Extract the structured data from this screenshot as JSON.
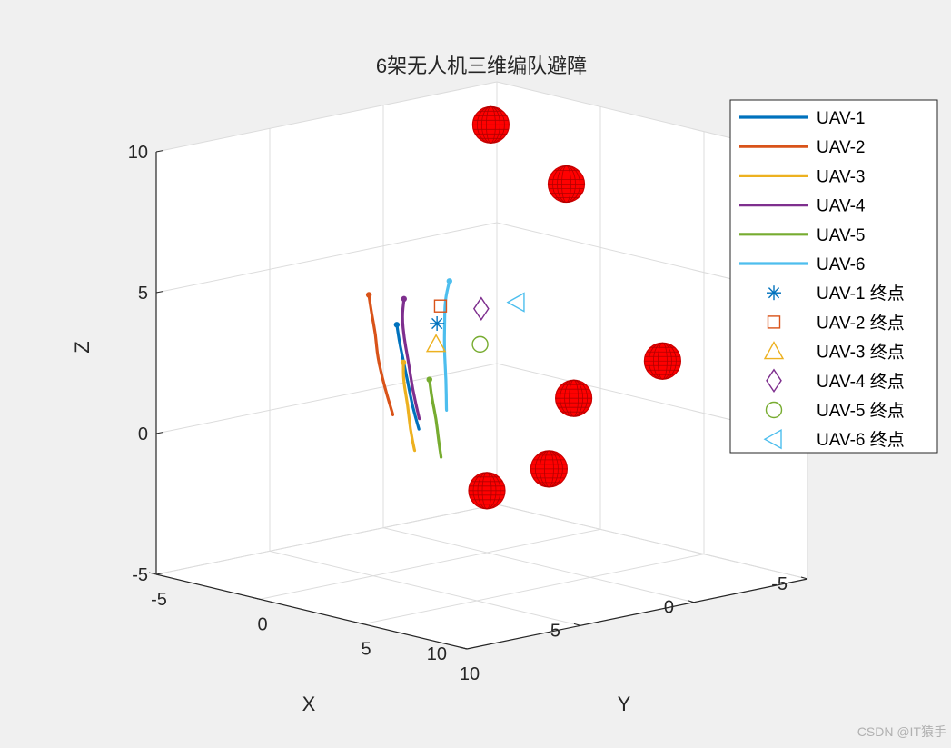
{
  "chart_data": {
    "type": "line3d",
    "title": "6架无人机三维编队避障",
    "xlabel": "X",
    "ylabel": "Y",
    "zlabel": "Z",
    "xlim": [
      -5,
      10
    ],
    "ylim": [
      -5,
      10
    ],
    "zlim": [
      -5,
      10
    ],
    "x_ticks": [
      "-5",
      "0",
      "5",
      "10"
    ],
    "y_ticks": [
      "-5",
      "0",
      "5",
      "10"
    ],
    "z_ticks": [
      "-5",
      "0",
      "5",
      "10"
    ],
    "grid": true,
    "legend_position": "top-right",
    "series": [
      {
        "name": "UAV-1",
        "color": "#0072BD",
        "points": [
          [
            0.5,
            -3.8,
            2.5
          ],
          [
            1.3,
            -2.8,
            2.2
          ],
          [
            2.3,
            -1.5,
            1.9
          ],
          [
            3.2,
            -0.3,
            1.5
          ],
          [
            4.2,
            1.0,
            1.1
          ],
          [
            5.0,
            2.2,
            0.6
          ]
        ]
      },
      {
        "name": "UAV-2",
        "color": "#D95319",
        "points": [
          [
            1.0,
            -4.6,
            3.5
          ],
          [
            1.8,
            -3.6,
            3.2
          ],
          [
            2.8,
            -2.3,
            2.8
          ],
          [
            3.9,
            -1.0,
            2.4
          ],
          [
            4.8,
            0.3,
            1.8
          ],
          [
            5.6,
            1.6,
            1.1
          ]
        ]
      },
      {
        "name": "UAV-3",
        "color": "#EDB120",
        "points": [
          [
            2.4,
            -1.4,
            1.9
          ],
          [
            3.4,
            -0.3,
            1.6
          ],
          [
            4.3,
            0.9,
            1.1
          ],
          [
            5.2,
            2.0,
            0.6
          ],
          [
            6.1,
            3.2,
            0.2
          ]
        ]
      },
      {
        "name": "UAV-4",
        "color": "#7E2F8E",
        "points": [
          [
            0.0,
            -4.0,
            3.3
          ],
          [
            1.0,
            -3.0,
            3.0
          ],
          [
            2.0,
            -1.8,
            2.6
          ],
          [
            3.0,
            -0.5,
            2.2
          ],
          [
            4.0,
            0.8,
            1.6
          ],
          [
            4.8,
            2.0,
            0.9
          ]
        ]
      },
      {
        "name": "UAV-5",
        "color": "#77AC30",
        "points": [
          [
            1.8,
            -0.8,
            1.3
          ],
          [
            2.7,
            0.3,
            1.0
          ],
          [
            3.6,
            1.5,
            0.6
          ],
          [
            4.5,
            2.6,
            0.2
          ],
          [
            5.3,
            3.6,
            -0.1
          ]
        ]
      },
      {
        "name": "UAV-6",
        "color": "#4DBEEE",
        "points": [
          [
            -2.0,
            -4.0,
            3.6
          ],
          [
            -0.8,
            -2.9,
            3.3
          ],
          [
            0.4,
            -1.6,
            2.9
          ],
          [
            1.6,
            -0.3,
            2.4
          ],
          [
            2.8,
            1.1,
            1.8
          ],
          [
            3.6,
            2.0,
            1.0
          ]
        ]
      }
    ],
    "endpoints": [
      {
        "name": "UAV-1 终点",
        "color": "#0072BD",
        "marker": "asterisk",
        "point": [
          1.1,
          -1.2,
          3.1
        ]
      },
      {
        "name": "UAV-2 终点",
        "color": "#D95319",
        "marker": "square",
        "point": [
          0.4,
          -1.8,
          3.5
        ]
      },
      {
        "name": "UAV-3 终点",
        "color": "#EDB120",
        "marker": "triangle-up",
        "point": [
          2.6,
          0.4,
          2.9
        ]
      },
      {
        "name": "UAV-4 终点",
        "color": "#7E2F8E",
        "marker": "diamond",
        "point": [
          -0.3,
          -0.6,
          3.5
        ]
      },
      {
        "name": "UAV-5 终点",
        "color": "#77AC30",
        "marker": "circle",
        "point": [
          1.3,
          1.1,
          2.8
        ]
      },
      {
        "name": "UAV-6 终点",
        "color": "#4DBEEE",
        "marker": "triangle-left",
        "point": [
          -1.5,
          -0.2,
          3.6
        ]
      }
    ],
    "obstacles": {
      "color": "#FF0000",
      "spheres": [
        [
          -2.0,
          -2.0,
          9.5
        ],
        [
          -3.5,
          0.0,
          7.5
        ],
        [
          -5.0,
          3.0,
          1.5
        ],
        [
          -2.0,
          2.0,
          0.5
        ],
        [
          0.0,
          3.0,
          -1.5
        ],
        [
          0.0,
          0.0,
          -2.8
        ]
      ]
    }
  },
  "watermark": "CSDN @IT猿手"
}
